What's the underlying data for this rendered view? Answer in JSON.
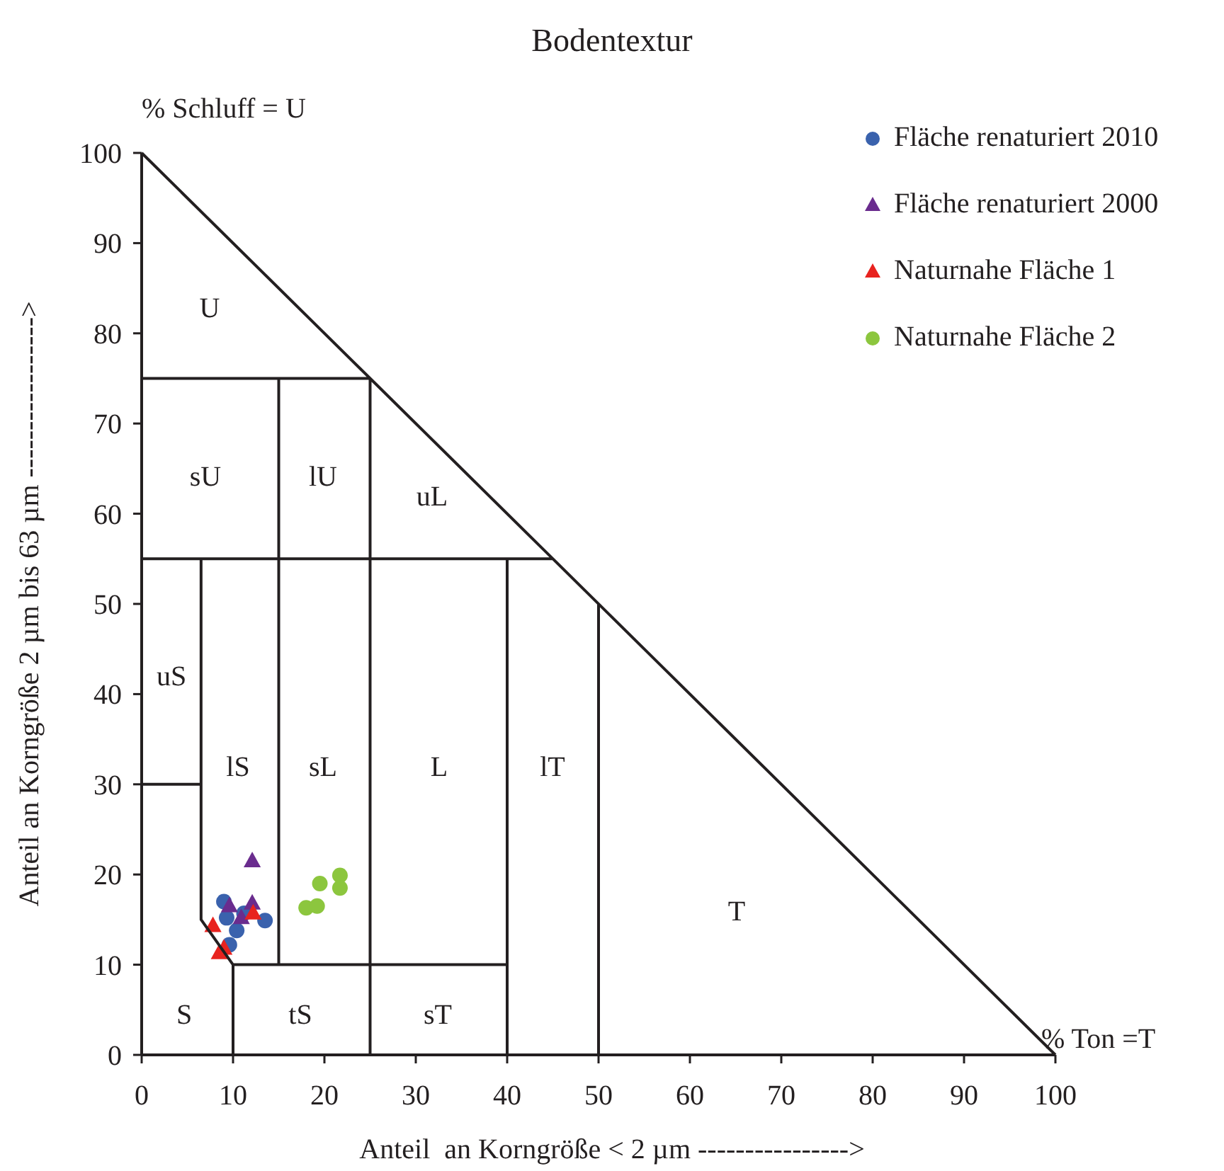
{
  "chart_data": {
    "type": "scatter",
    "title": "Bodentextur",
    "xlabel": "Anteil  an Korngröße < 2 µm ---------------->",
    "ylabel": "Anteil an Korngröße 2 µm bis 63 µm ----------------->",
    "xlim": [
      0,
      100
    ],
    "ylim": [
      0,
      100
    ],
    "xticks": [
      0,
      10,
      20,
      30,
      40,
      50,
      60,
      70,
      80,
      90,
      100
    ],
    "yticks": [
      0,
      10,
      20,
      30,
      40,
      50,
      60,
      70,
      80,
      90,
      100
    ],
    "grid": false,
    "legend": "top right",
    "series": [
      {
        "name": "Fläche renaturiert 2010",
        "color": "#3a62ad",
        "marker": "circle",
        "x": [
          9.0,
          9.3,
          10.4,
          9.6,
          13.5,
          11.2
        ],
        "values": [
          17.0,
          15.2,
          13.8,
          12.2,
          14.9,
          15.7
        ]
      },
      {
        "name": "Fläche renaturiert 2000",
        "color": "#6a2c8e",
        "marker": "triangle",
        "x": [
          12.1,
          9.6,
          12.1,
          10.9
        ],
        "values": [
          21.5,
          16.5,
          16.8,
          15.2
        ]
      },
      {
        "name": "Naturnahe Fläche 1",
        "color": "#e8231f",
        "marker": "triangle",
        "x": [
          7.8,
          12.2,
          9.0,
          8.5
        ],
        "values": [
          14.3,
          15.7,
          11.8,
          11.3
        ]
      },
      {
        "name": "Naturnahe Fläche 2",
        "color": "#8cc63e",
        "marker": "circle",
        "x": [
          18.0,
          19.2,
          19.5,
          21.7,
          21.7
        ],
        "values": [
          16.3,
          16.5,
          19.0,
          19.9,
          18.5
        ]
      },
      {
        "type": "line",
        "color": "#231f20",
        "x": [
          0,
          100,
          null,
          0,
          25,
          null,
          0,
          45,
          null,
          15,
          15,
          null,
          25,
          25,
          null,
          6.5,
          6.5,
          10,
          10,
          null,
          0,
          6.5,
          null,
          10,
          40,
          null,
          40,
          40,
          null,
          50,
          50
        ],
        "values": [
          100,
          0,
          null,
          75,
          75,
          null,
          55,
          55,
          null,
          75,
          10,
          null,
          75,
          0,
          null,
          55,
          15,
          10,
          0,
          null,
          30,
          30,
          null,
          10,
          10,
          null,
          55,
          0,
          null,
          50,
          0
        ]
      }
    ],
    "annotations": [
      {
        "text": "% Schluff = U",
        "x": 0,
        "y": 100
      },
      {
        "text": "% Ton =T",
        "x": 100,
        "y": 0
      },
      "U",
      "sU",
      "lU",
      "uL",
      "uS",
      "lS",
      "sL",
      "L",
      "lT",
      "T",
      "S",
      "tS",
      "sT"
    ]
  }
}
